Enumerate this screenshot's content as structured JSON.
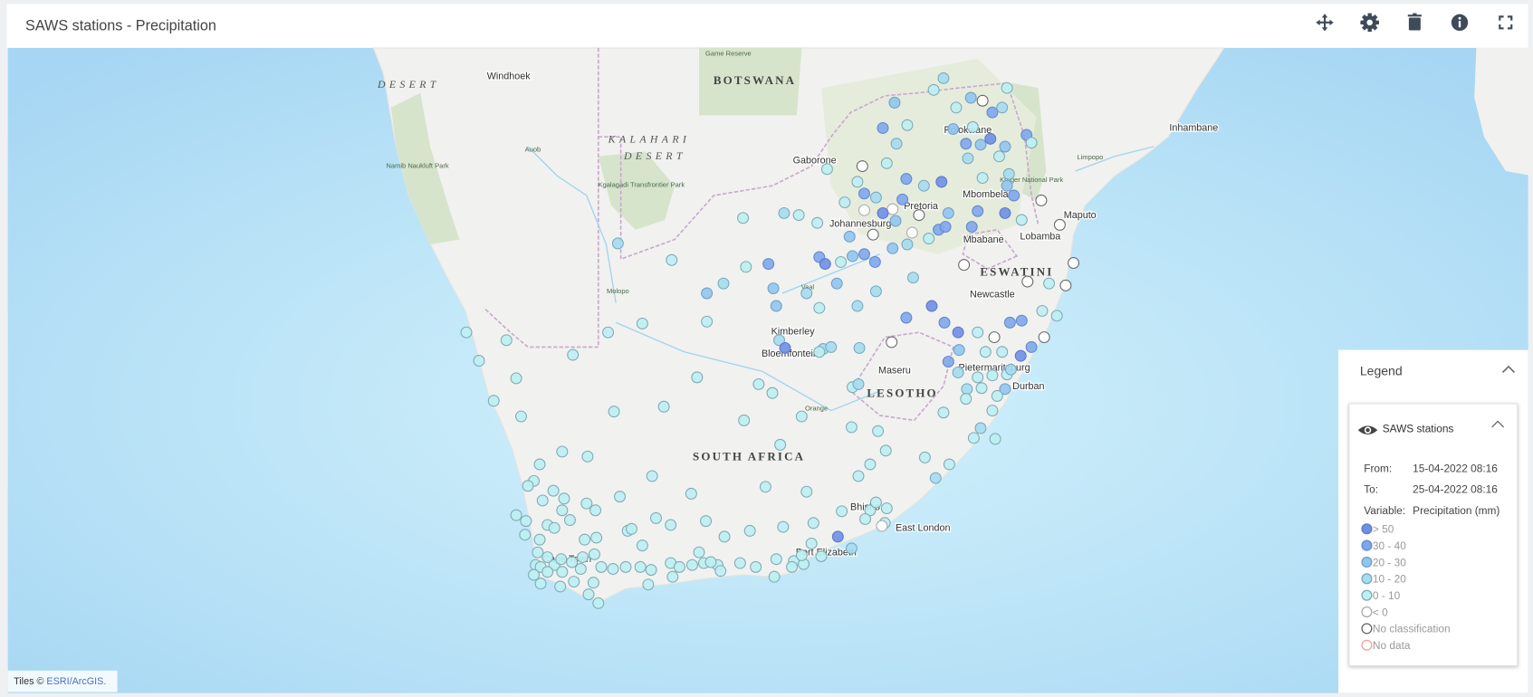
{
  "header": {
    "title": "SAWS stations - Precipitation"
  },
  "map": {
    "places": [
      "Windhoek",
      "BOTSWANA",
      "KALAHARI",
      "DESERT",
      "Gaborone",
      "Kgalagadi Transfrontier Park",
      "Namib Naukluft Park",
      "Game Reserve",
      "DESERT",
      "Polokwane",
      "Inhambane",
      "Kruger National Park",
      "Mbombela",
      "Pretoria",
      "Johannesburg",
      "Maputo",
      "Mbabane",
      "Lobamba",
      "ESWATINI",
      "Newcastle",
      "Kimberley",
      "Bloemfontein",
      "Maseru",
      "LESOTHO",
      "Pietermaritzburg",
      "Durban",
      "SOUTH AFRICA",
      "Bhisho",
      "East London",
      "Port Elizabeth",
      "Cape Town",
      "Limpopo",
      "Orange",
      "Vaal",
      "Molopo",
      "Auob"
    ],
    "attribution": {
      "prefix": "Tiles ©",
      "link": "ESRI/ArcGIS."
    }
  },
  "legend": {
    "title": "Legend",
    "layer": "SAWS stations",
    "from_label": "From:",
    "from": "15-04-2022 08:16",
    "to_label": "To:",
    "to": "25-04-2022 08:16",
    "variable_label": "Variable:",
    "variable": "Precipitation (mm)",
    "classes": [
      {
        "label": "> 50",
        "fill": "#6f8fe6",
        "stroke": "#5a79c9"
      },
      {
        "label": "30 - 40",
        "fill": "#7fa6ec",
        "stroke": "#6089cc"
      },
      {
        "label": "20 - 30",
        "fill": "#90c5ee",
        "stroke": "#6f9fc7"
      },
      {
        "label": "10 - 20",
        "fill": "#a5dcef",
        "stroke": "#77a9c0"
      },
      {
        "label": "0 - 10",
        "fill": "#bdf0f2",
        "stroke": "#7fa9b5"
      },
      {
        "label": "< 0",
        "fill": "#ffffff",
        "stroke": "#aaaaaa"
      },
      {
        "label": "No classification",
        "fill": "#ffffff",
        "stroke": "#666666"
      },
      {
        "label": "No data",
        "fill": "#ffffff",
        "stroke": "#f0a0a0"
      }
    ]
  }
}
